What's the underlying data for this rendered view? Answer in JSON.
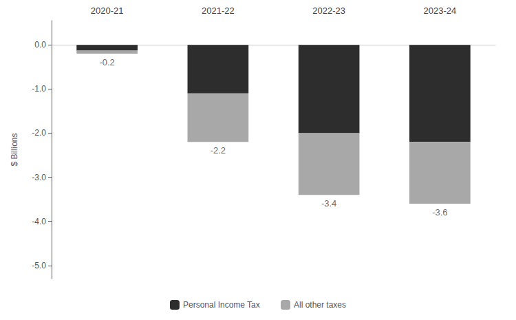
{
  "chart_data": {
    "type": "bar",
    "stacked": true,
    "categories": [
      "2020-21",
      "2021-22",
      "2022-23",
      "2023-24"
    ],
    "series": [
      {
        "name": "Personal Income Tax",
        "color": "#2d2d2d",
        "values": [
          -0.13,
          -1.1,
          -2.0,
          -2.2
        ]
      },
      {
        "name": "All other taxes",
        "color": "#a8a8a8",
        "values": [
          -0.07,
          -1.1,
          -1.4,
          -1.4
        ]
      }
    ],
    "totals": [
      -0.2,
      -2.2,
      -3.4,
      -3.6
    ],
    "ylabel": "$ Billions",
    "ylim": [
      -5.3,
      0.55
    ],
    "yticks": [
      {
        "value": 0.0,
        "label": "0.0"
      },
      {
        "value": -1.0,
        "label": "-1.0"
      },
      {
        "value": -2.0,
        "label": "-2.0"
      },
      {
        "value": -3.0,
        "label": "-3.0"
      },
      {
        "value": -4.0,
        "label": "-4.0"
      },
      {
        "value": -5.0,
        "label": "-5.0"
      }
    ],
    "grid": false,
    "legend": "bottom"
  }
}
